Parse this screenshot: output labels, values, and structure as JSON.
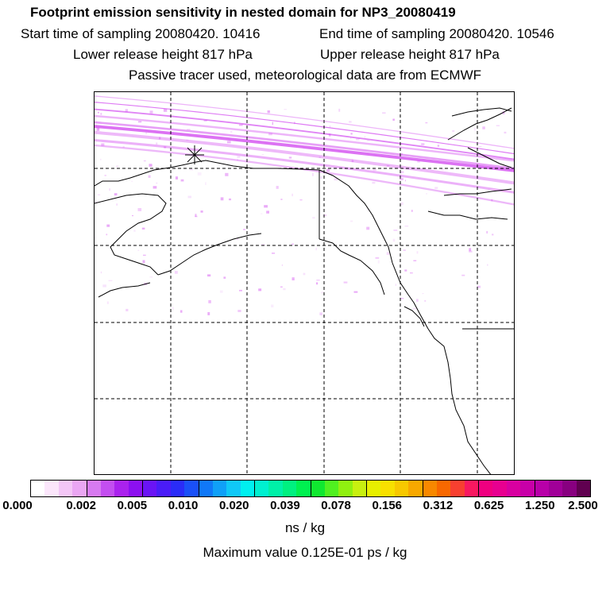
{
  "header": {
    "title": "Footprint emission sensitivity in nested domain for NP3_20080419",
    "start_label": "Start time of sampling 20080420. 10416",
    "end_label": "End time of sampling 20080420. 10546",
    "lower_label": "Lower release height  817 hPa",
    "upper_label": "Upper release height  817 hPa",
    "tracer_note": "Passive tracer used, meteorological data are from ECMWF"
  },
  "map": {
    "release_marker": "asterisk-marker",
    "plume_color": "#cc33ee",
    "coastline_color": "#000000",
    "grid_style": "dashed"
  },
  "colorbar": {
    "tick_labels": [
      "0.000",
      "0.002",
      "0.005",
      "0.010",
      "0.020",
      "0.039",
      "0.078",
      "0.156",
      "0.312",
      "0.625",
      "1.250",
      "2.500"
    ],
    "colors": [
      "#ffffff",
      "#fbe6fb",
      "#f3c6f6",
      "#eaa6f3",
      "#d77af0",
      "#c34ef0",
      "#aa22ee",
      "#8c10f0",
      "#6a14f5",
      "#4a1cf8",
      "#2a2cf8",
      "#1a50f8",
      "#1078f8",
      "#10a0f8",
      "#10c8f8",
      "#00f0f0",
      "#00f0d0",
      "#00f0a8",
      "#00f080",
      "#00f050",
      "#10e830",
      "#50f020",
      "#90f010",
      "#c8f010",
      "#e8f000",
      "#f8e000",
      "#f8c800",
      "#f8a800",
      "#f88800",
      "#f86800",
      "#f84030",
      "#f81860",
      "#f00080",
      "#e80090",
      "#d800a0",
      "#c800a8",
      "#b800a8",
      "#a00098",
      "#880080",
      "#600050"
    ],
    "units": "ns / kg",
    "max_value": "Maximum value  0.125E-01 ps / kg"
  }
}
